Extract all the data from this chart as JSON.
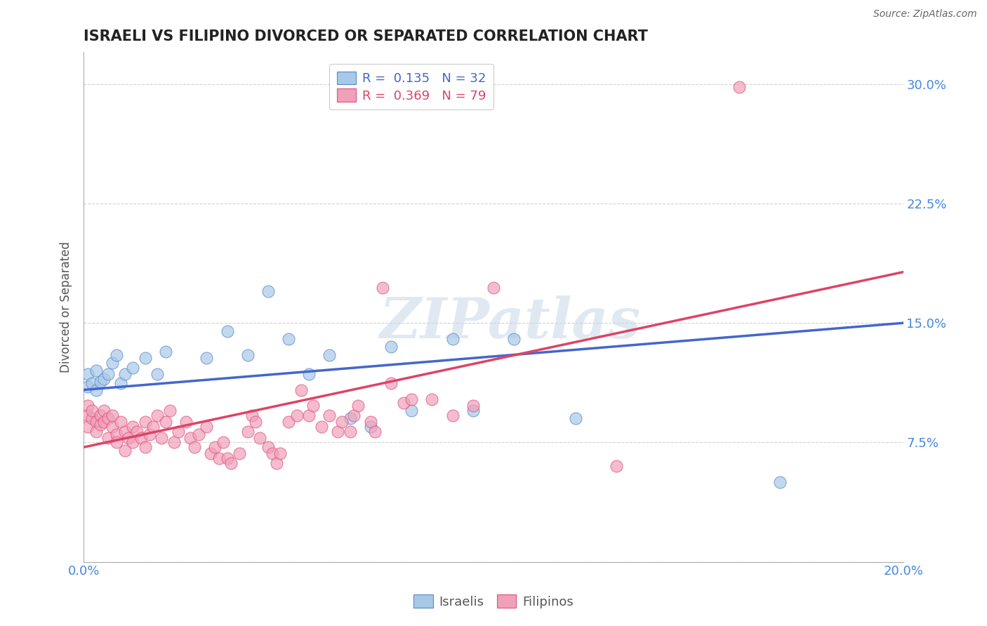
{
  "title": "ISRAELI VS FILIPINO DIVORCED OR SEPARATED CORRELATION CHART",
  "source": "Source: ZipAtlas.com",
  "ylabel_label": "Divorced or Separated",
  "xlim": [
    0.0,
    0.2
  ],
  "ylim": [
    0.0,
    0.32
  ],
  "R_israeli": 0.135,
  "N_israeli": 32,
  "R_filipino": 0.369,
  "N_filipino": 79,
  "blue_fill": "#a8c8e8",
  "blue_edge": "#5588cc",
  "pink_fill": "#f0a0b8",
  "pink_edge": "#e05080",
  "line_blue": "#4466cc",
  "line_pink": "#dd4466",
  "tick_color": "#4488dd",
  "watermark": "ZIPatlas",
  "israeli_points": [
    [
      0.001,
      0.11
    ],
    [
      0.001,
      0.118
    ],
    [
      0.002,
      0.112
    ],
    [
      0.003,
      0.108
    ],
    [
      0.003,
      0.12
    ],
    [
      0.004,
      0.113
    ],
    [
      0.005,
      0.115
    ],
    [
      0.006,
      0.118
    ],
    [
      0.007,
      0.125
    ],
    [
      0.008,
      0.13
    ],
    [
      0.009,
      0.112
    ],
    [
      0.01,
      0.118
    ],
    [
      0.012,
      0.122
    ],
    [
      0.015,
      0.128
    ],
    [
      0.018,
      0.118
    ],
    [
      0.02,
      0.132
    ],
    [
      0.03,
      0.128
    ],
    [
      0.035,
      0.145
    ],
    [
      0.04,
      0.13
    ],
    [
      0.045,
      0.17
    ],
    [
      0.05,
      0.14
    ],
    [
      0.055,
      0.118
    ],
    [
      0.06,
      0.13
    ],
    [
      0.065,
      0.09
    ],
    [
      0.07,
      0.085
    ],
    [
      0.075,
      0.135
    ],
    [
      0.08,
      0.095
    ],
    [
      0.09,
      0.14
    ],
    [
      0.095,
      0.095
    ],
    [
      0.105,
      0.14
    ],
    [
      0.12,
      0.09
    ],
    [
      0.17,
      0.05
    ]
  ],
  "filipino_points": [
    [
      0.001,
      0.098
    ],
    [
      0.001,
      0.092
    ],
    [
      0.001,
      0.085
    ],
    [
      0.002,
      0.09
    ],
    [
      0.002,
      0.095
    ],
    [
      0.003,
      0.088
    ],
    [
      0.003,
      0.082
    ],
    [
      0.004,
      0.092
    ],
    [
      0.004,
      0.086
    ],
    [
      0.005,
      0.095
    ],
    [
      0.005,
      0.088
    ],
    [
      0.006,
      0.078
    ],
    [
      0.006,
      0.09
    ],
    [
      0.007,
      0.085
    ],
    [
      0.007,
      0.092
    ],
    [
      0.008,
      0.08
    ],
    [
      0.008,
      0.075
    ],
    [
      0.009,
      0.088
    ],
    [
      0.01,
      0.082
    ],
    [
      0.01,
      0.07
    ],
    [
      0.011,
      0.078
    ],
    [
      0.012,
      0.085
    ],
    [
      0.012,
      0.075
    ],
    [
      0.013,
      0.082
    ],
    [
      0.014,
      0.078
    ],
    [
      0.015,
      0.088
    ],
    [
      0.015,
      0.072
    ],
    [
      0.016,
      0.08
    ],
    [
      0.017,
      0.085
    ],
    [
      0.018,
      0.092
    ],
    [
      0.019,
      0.078
    ],
    [
      0.02,
      0.088
    ],
    [
      0.021,
      0.095
    ],
    [
      0.022,
      0.075
    ],
    [
      0.023,
      0.082
    ],
    [
      0.025,
      0.088
    ],
    [
      0.026,
      0.078
    ],
    [
      0.027,
      0.072
    ],
    [
      0.028,
      0.08
    ],
    [
      0.03,
      0.085
    ],
    [
      0.031,
      0.068
    ],
    [
      0.032,
      0.072
    ],
    [
      0.033,
      0.065
    ],
    [
      0.034,
      0.075
    ],
    [
      0.035,
      0.065
    ],
    [
      0.036,
      0.062
    ],
    [
      0.038,
      0.068
    ],
    [
      0.04,
      0.082
    ],
    [
      0.041,
      0.092
    ],
    [
      0.042,
      0.088
    ],
    [
      0.043,
      0.078
    ],
    [
      0.045,
      0.072
    ],
    [
      0.046,
      0.068
    ],
    [
      0.047,
      0.062
    ],
    [
      0.048,
      0.068
    ],
    [
      0.05,
      0.088
    ],
    [
      0.052,
      0.092
    ],
    [
      0.053,
      0.108
    ],
    [
      0.055,
      0.092
    ],
    [
      0.056,
      0.098
    ],
    [
      0.058,
      0.085
    ],
    [
      0.06,
      0.092
    ],
    [
      0.062,
      0.082
    ],
    [
      0.063,
      0.088
    ],
    [
      0.065,
      0.082
    ],
    [
      0.066,
      0.092
    ],
    [
      0.067,
      0.098
    ],
    [
      0.07,
      0.088
    ],
    [
      0.071,
      0.082
    ],
    [
      0.073,
      0.172
    ],
    [
      0.075,
      0.112
    ],
    [
      0.078,
      0.1
    ],
    [
      0.08,
      0.102
    ],
    [
      0.085,
      0.102
    ],
    [
      0.09,
      0.092
    ],
    [
      0.095,
      0.098
    ],
    [
      0.1,
      0.172
    ],
    [
      0.13,
      0.06
    ],
    [
      0.16,
      0.298
    ]
  ]
}
